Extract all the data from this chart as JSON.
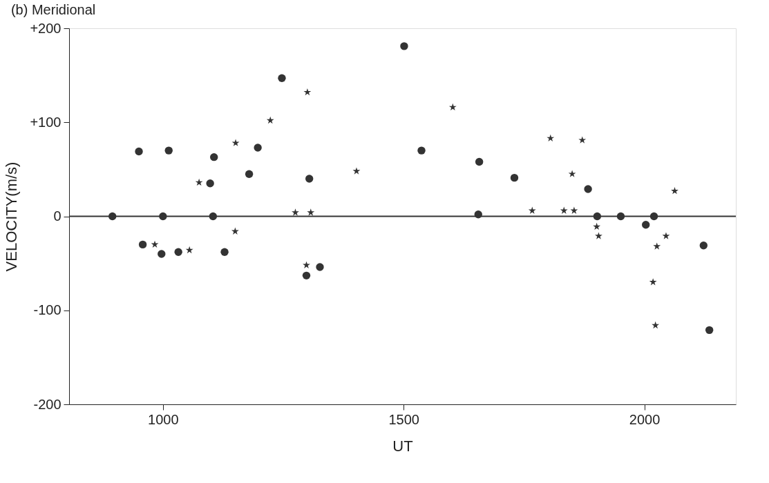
{
  "chart_data": {
    "type": "scatter",
    "title": "(b) Meridional",
    "xlabel": "UT",
    "ylabel": "VELOCITY(m/s)",
    "xlim": [
      805,
      2190
    ],
    "xticks": [
      1000,
      1500,
      2000
    ],
    "ylim": [
      -200,
      200
    ],
    "yticks": [
      {
        "value": 200,
        "label": "+200"
      },
      {
        "value": 100,
        "label": "+100"
      },
      0,
      -100,
      -200
    ],
    "grid": false,
    "ref_lines": [
      {
        "axis": "y",
        "value": 0,
        "color": "#333333"
      }
    ],
    "series": [
      {
        "color": "#333333",
        "marker": "circle",
        "x": [
          895,
          950,
          1012,
          1106,
          1098,
          1179,
          1197,
          1247,
          1304,
          1000,
          1104,
          958,
          997,
          1032,
          1128,
          1298,
          1326,
          1501,
          1537,
          1657,
          1730,
          1883,
          1655,
          1902,
          1951,
          2020,
          2003,
          2123,
          2135
        ],
        "values": [
          0,
          69,
          70,
          63,
          35,
          45,
          73,
          147,
          40,
          0,
          0,
          -30,
          -40,
          -38,
          -38,
          -63,
          -54,
          181,
          70,
          58,
          41,
          29,
          2,
          0,
          0,
          0,
          -9,
          -31,
          -121
        ]
      },
      {
        "color": "#333333",
        "marker": "star",
        "x": [
          1075,
          1151,
          1223,
          1300,
          1275,
          1307,
          1402,
          983,
          1055,
          1150,
          1298,
          1602,
          1805,
          1871,
          1850,
          2063,
          1767,
          1833,
          1854,
          1901,
          1905,
          2045,
          2026,
          2018,
          2023
        ],
        "values": [
          36,
          78,
          102,
          132,
          4,
          4,
          48,
          -30,
          -36,
          -16,
          -52,
          116,
          83,
          81,
          45,
          27,
          6,
          6,
          6,
          -11,
          -21,
          -21,
          -32,
          -70,
          -116
        ]
      }
    ]
  }
}
